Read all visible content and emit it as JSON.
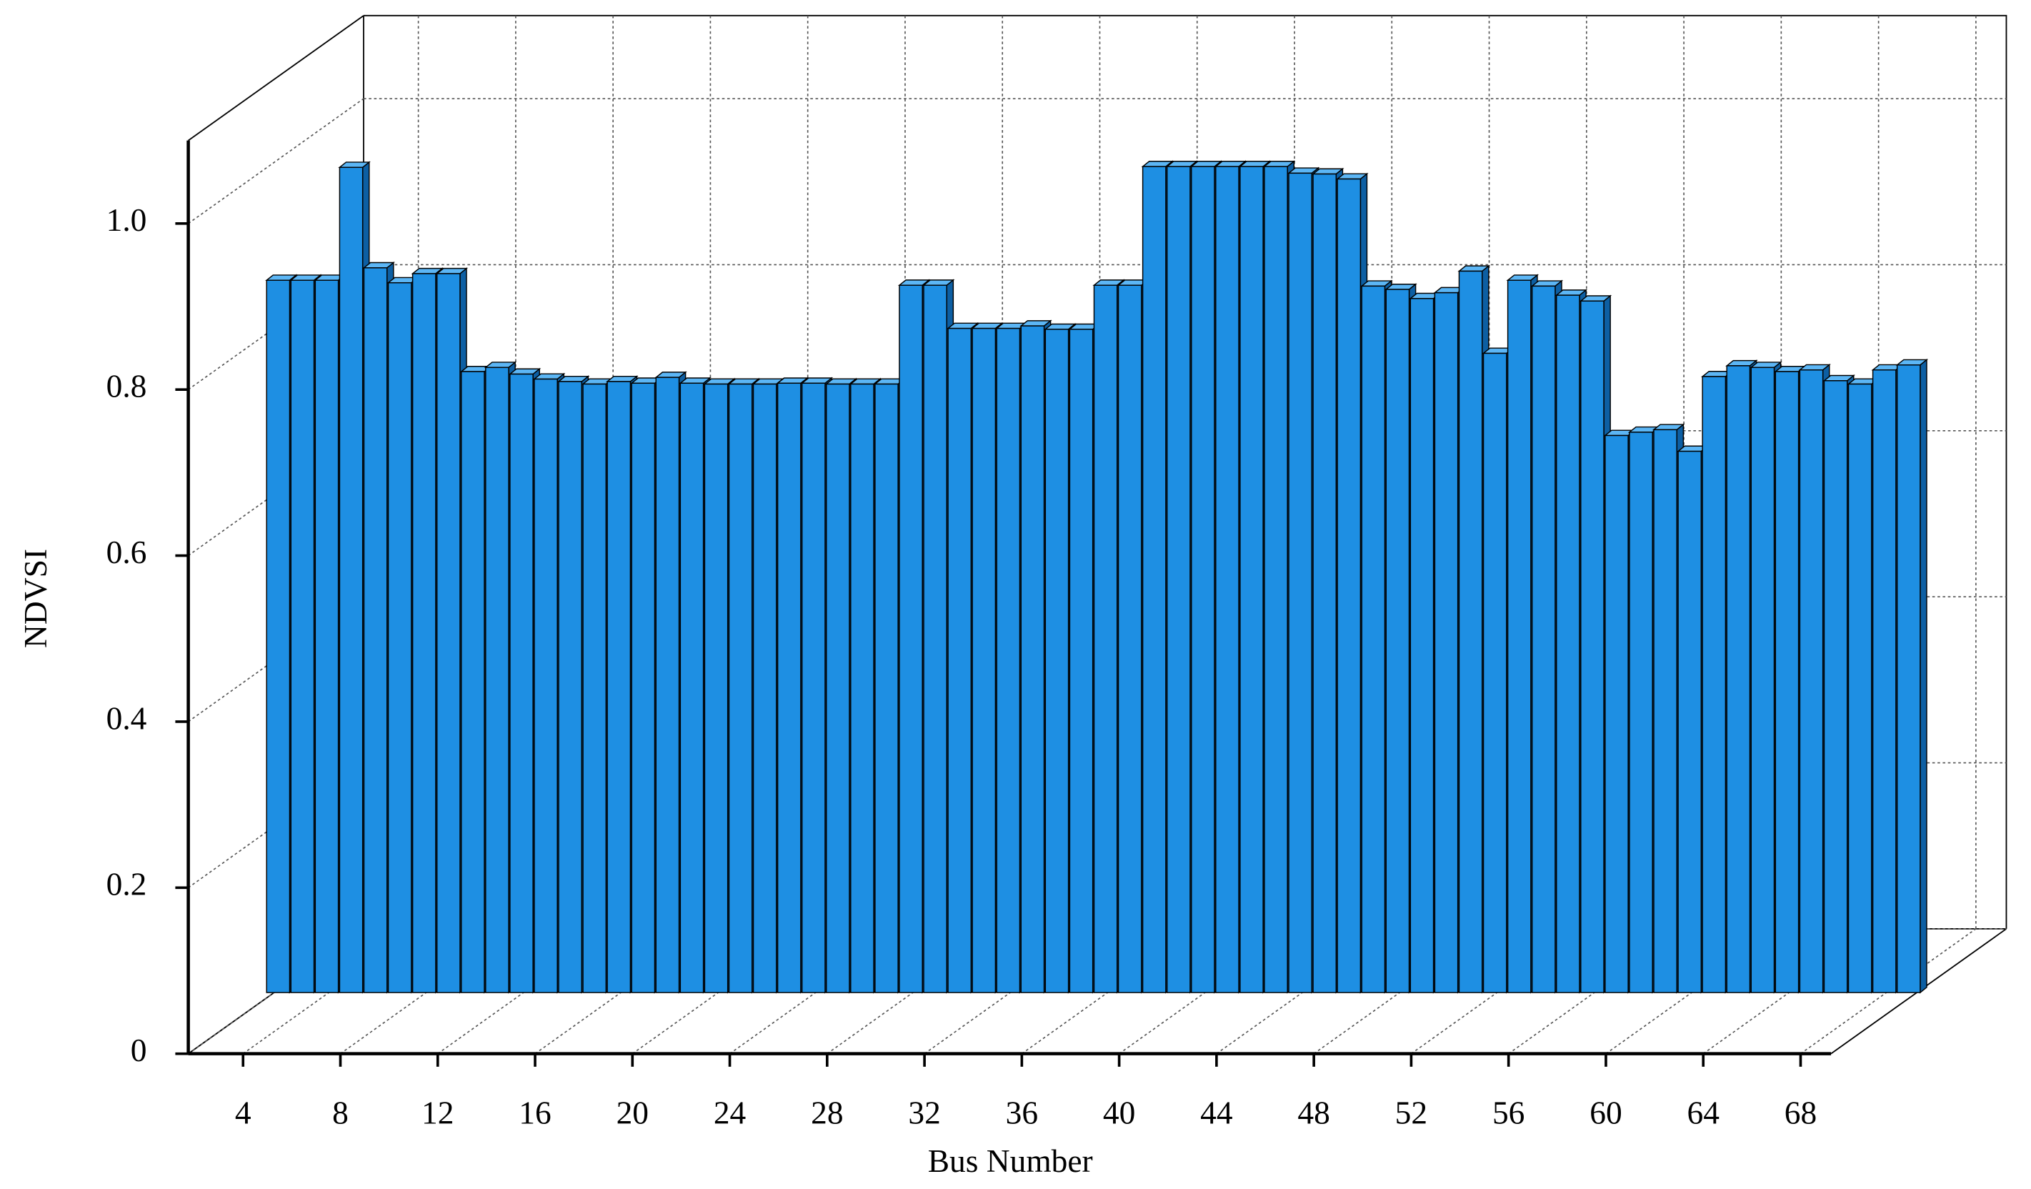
{
  "chart_data": {
    "type": "bar3d",
    "xlabel": "Bus Number",
    "ylabel": "NDVSI",
    "x": [
      2,
      3,
      4,
      5,
      6,
      7,
      8,
      9,
      10,
      11,
      12,
      13,
      14,
      15,
      16,
      17,
      18,
      19,
      20,
      21,
      22,
      23,
      24,
      25,
      26,
      27,
      28,
      29,
      30,
      31,
      32,
      33,
      34,
      35,
      36,
      37,
      38,
      39,
      40,
      41,
      42,
      43,
      44,
      45,
      46,
      47,
      48,
      49,
      50,
      51,
      52,
      53,
      54,
      55,
      56,
      57,
      58,
      59,
      60,
      61,
      62,
      63,
      64,
      65,
      66,
      67,
      68,
      69
    ],
    "values": [
      0.858,
      0.858,
      0.858,
      0.994,
      0.873,
      0.855,
      0.866,
      0.866,
      0.748,
      0.753,
      0.745,
      0.739,
      0.736,
      0.733,
      0.736,
      0.734,
      0.741,
      0.734,
      0.733,
      0.733,
      0.733,
      0.734,
      0.734,
      0.733,
      0.733,
      0.733,
      0.852,
      0.852,
      0.8,
      0.8,
      0.8,
      0.803,
      0.799,
      0.799,
      0.852,
      0.852,
      0.995,
      0.995,
      0.995,
      0.995,
      0.995,
      0.995,
      0.987,
      0.986,
      0.98,
      0.851,
      0.847,
      0.836,
      0.843,
      0.869,
      0.77,
      0.858,
      0.851,
      0.84,
      0.833,
      0.671,
      0.675,
      0.678,
      0.652,
      0.742,
      0.755,
      0.753,
      0.748,
      0.75,
      0.737,
      0.733,
      0.75,
      0.756
    ],
    "color": "#1e8fe3",
    "xlim": [
      1.75,
      69.25
    ],
    "xticks": [
      4,
      8,
      12,
      16,
      20,
      24,
      28,
      32,
      36,
      40,
      44,
      48,
      52,
      56,
      60,
      64,
      68
    ],
    "ylim": [
      0,
      1.1
    ],
    "yticks": [
      0,
      0.2,
      0.4,
      0.6,
      0.8,
      {
        "value": 1,
        "label": "1.0"
      }
    ],
    "grid": true
  }
}
